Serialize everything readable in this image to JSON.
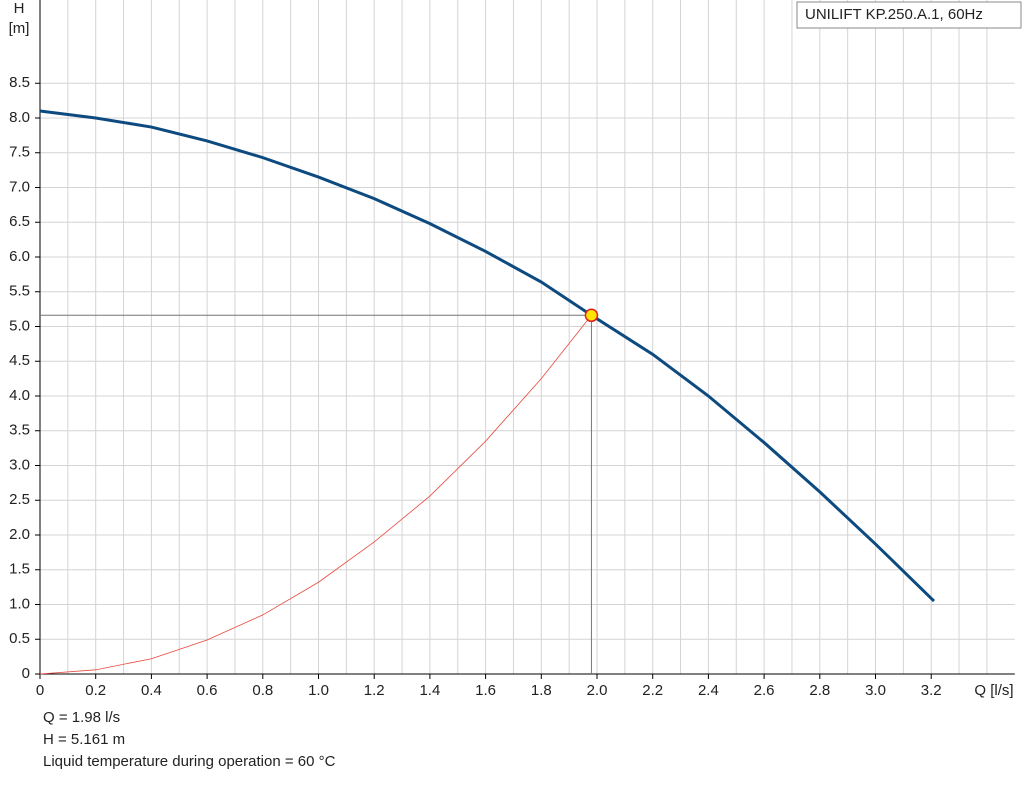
{
  "chart_data": {
    "type": "line",
    "legend_title": "UNILIFT KP.250.A.1, 60Hz",
    "x_label": "Q [l/s]",
    "y_label": [
      "H",
      "[m]"
    ],
    "xlim": [
      0,
      3.5
    ],
    "ylim": [
      0,
      9.7
    ],
    "xticks": [
      0,
      0.2,
      0.4,
      0.6,
      0.8,
      {
        "value": 1,
        "label": "1.0"
      },
      1.2,
      1.4,
      1.6,
      1.8,
      {
        "value": 2,
        "label": "2.0"
      },
      2.2,
      2.4,
      2.6,
      2.8,
      {
        "value": 3,
        "label": "3.0"
      },
      3.2
    ],
    "yticks": [
      0,
      0.5,
      {
        "value": 1,
        "label": "1.0"
      },
      1.5,
      {
        "value": 2,
        "label": "2.0"
      },
      2.5,
      {
        "value": 3,
        "label": "3.0"
      },
      3.5,
      {
        "value": 4,
        "label": "4.0"
      },
      4.5,
      {
        "value": 5,
        "label": "5.0"
      },
      5.5,
      {
        "value": 6,
        "label": "6.0"
      },
      6.5,
      {
        "value": 7,
        "label": "7.0"
      },
      7.5,
      {
        "value": 8,
        "label": "8.0"
      },
      8.5
    ],
    "grid": true,
    "series": [
      {
        "color": "#0d4a80",
        "x": [
          0,
          0.2,
          0.4,
          0.6,
          0.8,
          1.0,
          1.2,
          1.4,
          1.6,
          1.8,
          1.98,
          2.2,
          2.4,
          2.6,
          2.8,
          3.0,
          3.21
        ],
        "values": [
          8.1,
          8.0,
          7.87,
          7.67,
          7.43,
          7.15,
          6.84,
          6.48,
          6.08,
          5.64,
          5.161,
          4.6,
          4.0,
          3.33,
          2.62,
          1.87,
          1.05
        ]
      },
      {
        "color": "#e8483c",
        "x": [
          0,
          0.2,
          0.4,
          0.6,
          0.8,
          1.0,
          1.2,
          1.4,
          1.6,
          1.8,
          1.98
        ],
        "values": [
          0,
          0.06,
          0.22,
          0.49,
          0.85,
          1.32,
          1.9,
          2.56,
          3.35,
          4.25,
          5.161
        ]
      }
    ],
    "operating_point": {
      "x": 1.98,
      "y": 5.161,
      "color": "#ffe600"
    },
    "info": [
      "Q = 1.98 l/s",
      "H = 5.161 m",
      "Liquid temperature during operation = 60 °C"
    ]
  }
}
